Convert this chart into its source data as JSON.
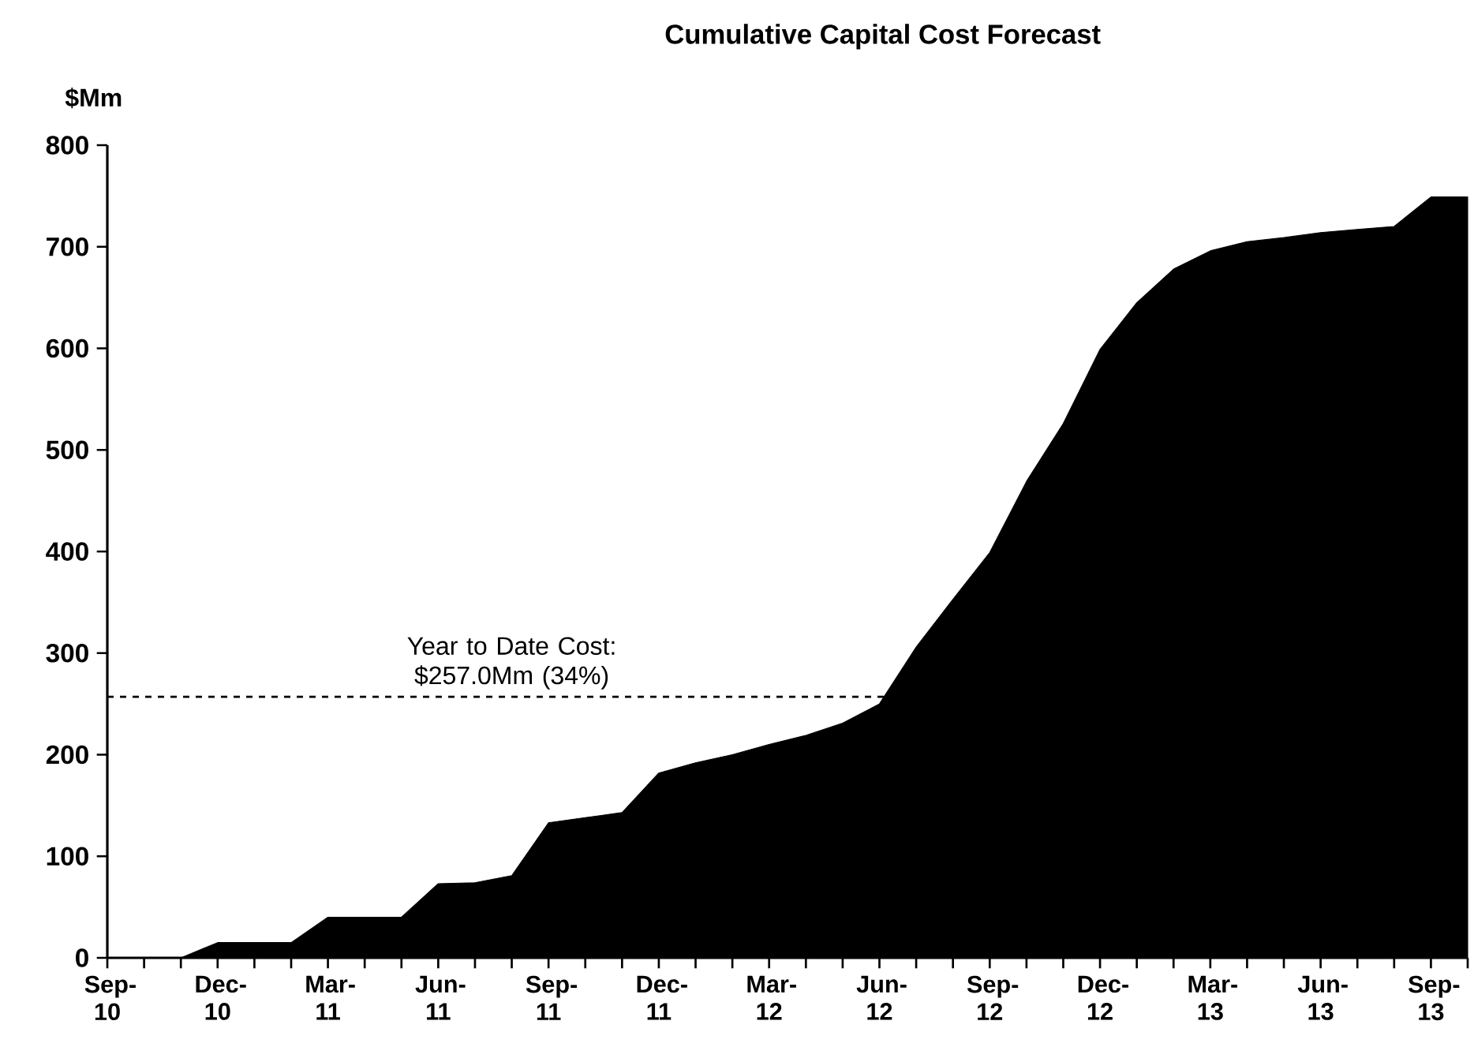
{
  "chart_data": {
    "type": "area",
    "title": "Cumulative Capital Cost Forecast",
    "ylabel": "$Mm",
    "categories": [
      "Sep-10",
      null,
      null,
      "Dec-10",
      null,
      null,
      "Mar-11",
      null,
      null,
      "Jun-11",
      null,
      null,
      "Sep-11",
      null,
      null,
      "Dec-11",
      null,
      null,
      "Mar-12",
      null,
      null,
      "Jun-12",
      null,
      null,
      "Sep-12",
      null,
      null,
      "Dec-12",
      null,
      null,
      "Mar-13",
      null,
      null,
      "Jun-13",
      null,
      null,
      "Sep-13",
      null
    ],
    "values": [
      0,
      0,
      0,
      15,
      15,
      15,
      40,
      40,
      40,
      73,
      74,
      81,
      133,
      138,
      143,
      182,
      192,
      200,
      210,
      219,
      231,
      250,
      306,
      353,
      399,
      469,
      526,
      599,
      645,
      678,
      696,
      705,
      709,
      714,
      717,
      720,
      749,
      749
    ],
    "color": "#000000",
    "ylim": [
      0,
      800
    ],
    "yticks": [
      0,
      100,
      200,
      300,
      400,
      500,
      600,
      700,
      800
    ],
    "ref_lines": [
      {
        "axis": "y",
        "value": 257,
        "label": "Year to Date Cost: $257.0Mm (34%)",
        "color": "#000000",
        "line_style": "dashed"
      }
    ]
  }
}
